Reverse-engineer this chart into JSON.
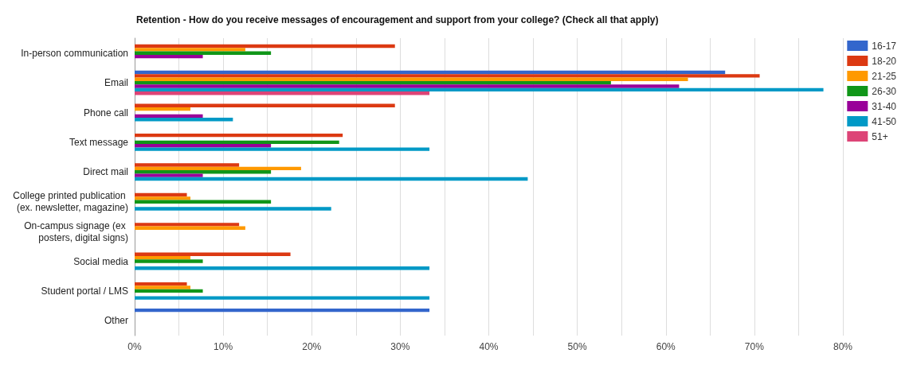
{
  "chart_data": {
    "type": "bar",
    "orientation": "horizontal",
    "title": "Retention - How do you receive messages of encouragement and support from your college? (Check all that apply)",
    "categories": [
      "In-person communication",
      "Email",
      "Phone call",
      "Text message",
      "Direct mail",
      "College printed publication (ex. newsletter, magazine)",
      "On-campus signage (ex posters, digital signs)",
      "Social media",
      "Student portal / LMS",
      "Other"
    ],
    "series": [
      {
        "name": "16-17",
        "color": "#3366cc",
        "values": [
          null,
          66.7,
          null,
          null,
          null,
          null,
          null,
          null,
          null,
          33.3
        ]
      },
      {
        "name": "18-20",
        "color": "#dc3912",
        "values": [
          29.4,
          70.6,
          29.4,
          23.5,
          11.8,
          5.9,
          11.8,
          17.6,
          5.9,
          null
        ]
      },
      {
        "name": "21-25",
        "color": "#ff9900",
        "values": [
          12.5,
          62.5,
          6.3,
          null,
          18.8,
          6.3,
          12.5,
          6.3,
          6.3,
          null
        ]
      },
      {
        "name": "26-30",
        "color": "#109618",
        "values": [
          15.4,
          53.8,
          null,
          23.1,
          15.4,
          15.4,
          null,
          7.7,
          7.7,
          null
        ]
      },
      {
        "name": "31-40",
        "color": "#990099",
        "values": [
          7.7,
          61.5,
          7.7,
          15.4,
          7.7,
          null,
          null,
          null,
          null,
          null
        ]
      },
      {
        "name": "41-50",
        "color": "#0099c6",
        "values": [
          null,
          77.8,
          11.1,
          33.3,
          44.4,
          22.2,
          null,
          33.3,
          33.3,
          null
        ]
      },
      {
        "name": "51+",
        "color": "#dd4477",
        "values": [
          null,
          33.3,
          null,
          null,
          null,
          null,
          null,
          null,
          null,
          null
        ]
      }
    ],
    "xlim": [
      0,
      80
    ],
    "xticks": [
      {
        "value": 0,
        "label": "0%"
      },
      {
        "value": 5,
        "label": null
      },
      {
        "value": 10,
        "label": "10%"
      },
      {
        "value": 15,
        "label": null
      },
      {
        "value": 20,
        "label": "20%"
      },
      {
        "value": 25,
        "label": null
      },
      {
        "value": 30,
        "label": "30%"
      },
      {
        "value": 35,
        "label": null
      },
      {
        "value": 40,
        "label": "40%"
      },
      {
        "value": 45,
        "label": null
      },
      {
        "value": 50,
        "label": "50%"
      },
      {
        "value": 55,
        "label": null
      },
      {
        "value": 60,
        "label": "60%"
      },
      {
        "value": 65,
        "label": null
      },
      {
        "value": 70,
        "label": "70%"
      },
      {
        "value": 75,
        "label": null
      },
      {
        "value": 80,
        "label": "80%"
      }
    ],
    "grid": "x",
    "legend": "top right"
  }
}
